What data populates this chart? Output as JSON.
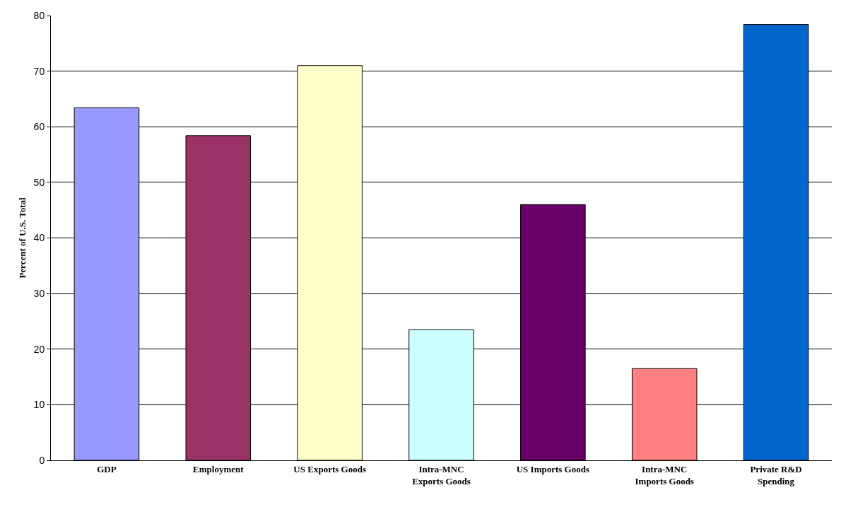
{
  "chart_data": {
    "type": "bar",
    "ylabel": "Percent of U.S. Total",
    "categories": [
      "GDP",
      "Employment",
      "US Exports Goods",
      "Intra-MNC\nExports Goods",
      "US Imports Goods",
      "Intra-MNC\nImports Goods",
      "Private R&D\nSpending"
    ],
    "values": [
      63.4,
      58.4,
      71.0,
      23.5,
      46.0,
      16.5,
      78.4
    ],
    "colors": [
      "#9999ff",
      "#993366",
      "#ffffcc",
      "#ccffff",
      "#660066",
      "#ff8080",
      "#0066cc"
    ],
    "ylim": [
      0,
      80
    ],
    "yticks": [
      0,
      10,
      20,
      30,
      40,
      50,
      60,
      70,
      80
    ],
    "grid": "y",
    "legend": false
  }
}
